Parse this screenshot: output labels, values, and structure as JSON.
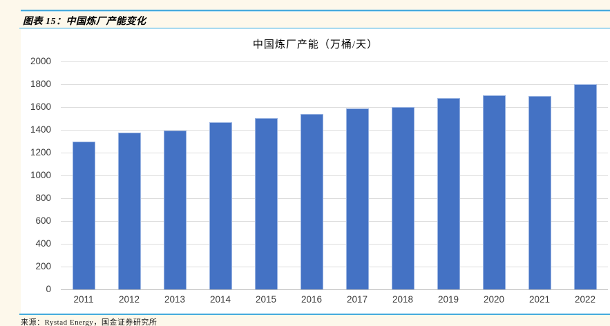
{
  "header": {
    "title": "图表 15：中国炼厂产能变化"
  },
  "footer": {
    "source": "来源：Rystad Energy，国金证券研究所"
  },
  "chart_data": {
    "type": "bar",
    "title": "中国炼厂产能（万桶/天）",
    "categories": [
      "2011",
      "2012",
      "2013",
      "2014",
      "2015",
      "2016",
      "2017",
      "2018",
      "2019",
      "2020",
      "2021",
      "2022"
    ],
    "values": [
      1300,
      1375,
      1395,
      1465,
      1505,
      1540,
      1590,
      1600,
      1680,
      1705,
      1700,
      1800
    ],
    "xlabel": "",
    "ylabel": "",
    "ylim": [
      0,
      2000
    ],
    "ytick_step": 200,
    "yticks": [
      "0",
      "200",
      "400",
      "600",
      "800",
      "1000",
      "1200",
      "1400",
      "1600",
      "1800",
      "2000"
    ],
    "grid": "horizontal",
    "legend": "none",
    "bar_color": "#4472c4",
    "bar_border_color": "#9ab4e2",
    "gridline_color": "#dcdcdc",
    "axis_line_color": "#bfbfbf",
    "accent_rule_color": "#45aadc",
    "light_rule_color": "#a7daf1",
    "page_background": "#fdf8eb",
    "panel_background": "#ffffff"
  }
}
